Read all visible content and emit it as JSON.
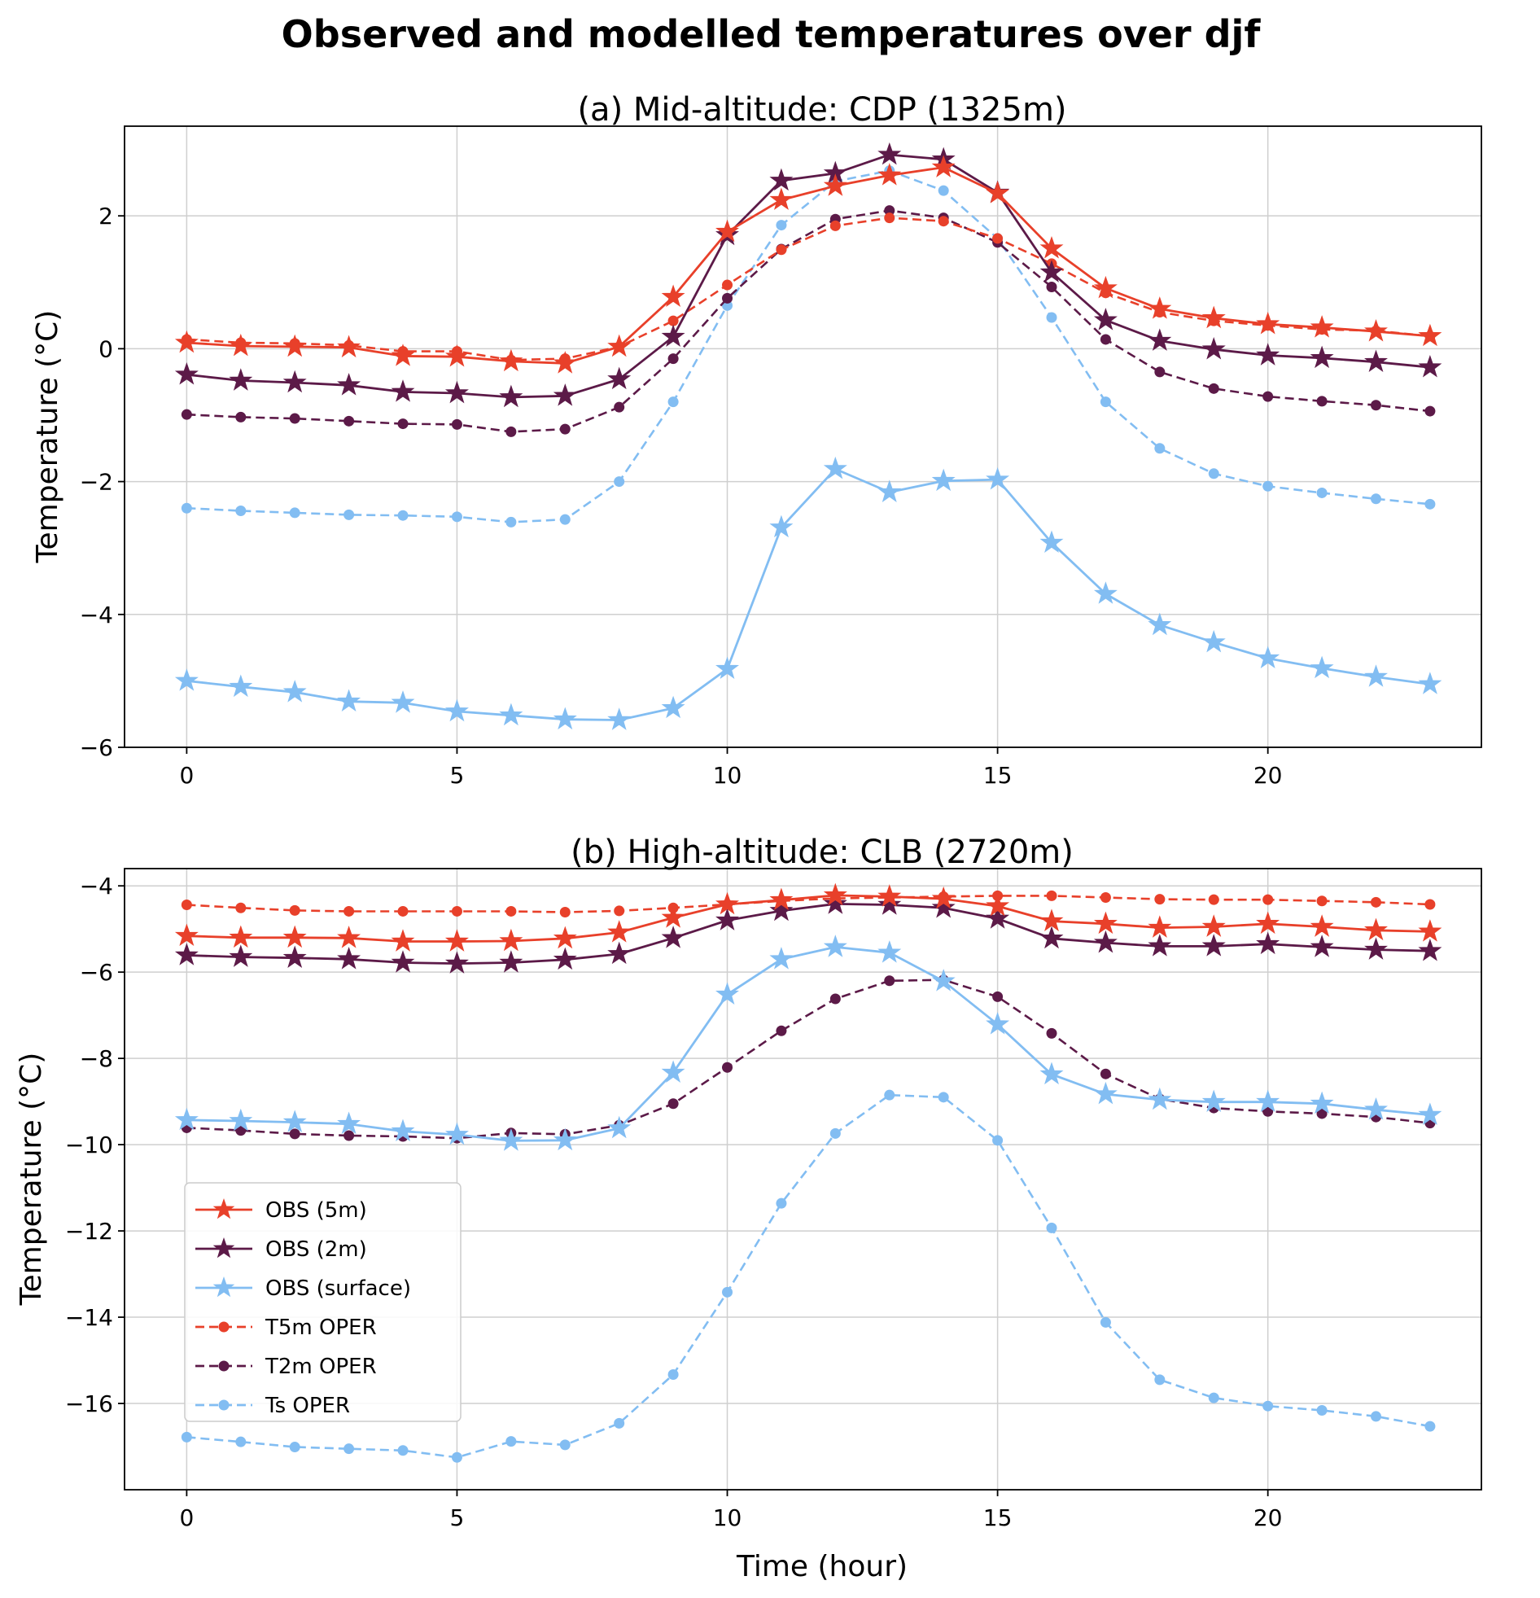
{
  "figure": {
    "title": "Observed and modelled temperatures over djf",
    "xlabel": "Time (hour)"
  },
  "colors": {
    "obs5m": "#e8402a",
    "obs2m": "#5c1a48",
    "obssurf": "#82bdf2",
    "t5m": "#e8402a",
    "t2m": "#5c1a48",
    "ts": "#82bdf2"
  },
  "legend": {
    "placement": "lower-left of panel (b)",
    "entries": [
      {
        "label": "OBS (5m)",
        "series": "obs5m",
        "style": "solid",
        "marker": "star"
      },
      {
        "label": "OBS (2m)",
        "series": "obs2m",
        "style": "solid",
        "marker": "star"
      },
      {
        "label": "OBS (surface)",
        "series": "obssurf",
        "style": "solid",
        "marker": "star"
      },
      {
        "label": "T5m OPER",
        "series": "t5m",
        "style": "dashed",
        "marker": "circle"
      },
      {
        "label": "T2m OPER",
        "series": "t2m",
        "style": "dashed",
        "marker": "circle"
      },
      {
        "label": "Ts OPER",
        "series": "ts",
        "style": "dashed",
        "marker": "circle"
      }
    ]
  },
  "chart_data": [
    {
      "type": "line",
      "title": "(a) Mid-altitude: CDP (1325m)",
      "xlabel": "",
      "ylabel": "Temperature (°C)",
      "xlim": [
        -1.15,
        23.95
      ],
      "ylim": [
        -6.0,
        3.35
      ],
      "xticks": [
        0,
        5,
        10,
        15,
        20
      ],
      "yticks": [
        -6,
        -4,
        -2,
        0,
        2
      ],
      "grid": true,
      "x": [
        0,
        1,
        2,
        3,
        4,
        5,
        6,
        7,
        8,
        9,
        10,
        11,
        12,
        13,
        14,
        15,
        16,
        17,
        18,
        19,
        20,
        21,
        22,
        23
      ],
      "series": [
        {
          "key": "ts",
          "name": "Ts OPER",
          "style": "dashed",
          "marker": "circle",
          "values": [
            -2.4,
            -2.44,
            -2.47,
            -2.5,
            -2.51,
            -2.53,
            -2.61,
            -2.57,
            -2.0,
            -0.8,
            0.65,
            1.86,
            2.52,
            2.68,
            2.38,
            1.66,
            0.47,
            -0.8,
            -1.5,
            -1.88,
            -2.07,
            -2.17,
            -2.26,
            -2.34
          ]
        },
        {
          "key": "t2m",
          "name": "T2m OPER",
          "style": "dashed",
          "marker": "circle",
          "values": [
            -0.99,
            -1.03,
            -1.05,
            -1.09,
            -1.13,
            -1.14,
            -1.25,
            -1.21,
            -0.88,
            -0.15,
            0.76,
            1.5,
            1.95,
            2.08,
            1.97,
            1.6,
            0.93,
            0.14,
            -0.35,
            -0.6,
            -0.72,
            -0.79,
            -0.85,
            -0.94
          ]
        },
        {
          "key": "t5m",
          "name": "T5m OPER",
          "style": "dashed",
          "marker": "circle",
          "values": [
            0.14,
            0.09,
            0.08,
            0.05,
            -0.04,
            -0.04,
            -0.17,
            -0.15,
            0.03,
            0.42,
            0.96,
            1.49,
            1.85,
            1.97,
            1.92,
            1.66,
            1.28,
            0.84,
            0.55,
            0.42,
            0.35,
            0.29,
            0.27,
            0.19
          ]
        },
        {
          "key": "obssurf",
          "name": "OBS (surface)",
          "style": "solid",
          "marker": "star",
          "values": [
            -5.0,
            -5.09,
            -5.17,
            -5.31,
            -5.33,
            -5.46,
            -5.52,
            -5.58,
            -5.59,
            -5.41,
            -4.82,
            -2.69,
            -1.81,
            -2.16,
            -1.99,
            -1.97,
            -2.92,
            -3.69,
            -4.16,
            -4.42,
            -4.66,
            -4.81,
            -4.94,
            -5.05
          ]
        },
        {
          "key": "obs2m",
          "name": "OBS (2m)",
          "style": "solid",
          "marker": "star",
          "values": [
            -0.39,
            -0.48,
            -0.51,
            -0.55,
            -0.65,
            -0.67,
            -0.73,
            -0.71,
            -0.46,
            0.18,
            1.71,
            2.53,
            2.64,
            2.92,
            2.85,
            2.35,
            1.15,
            0.43,
            0.12,
            -0.01,
            -0.1,
            -0.14,
            -0.2,
            -0.28
          ]
        },
        {
          "key": "obs5m",
          "name": "OBS (5m)",
          "style": "solid",
          "marker": "star",
          "values": [
            0.09,
            0.04,
            0.03,
            0.02,
            -0.11,
            -0.12,
            -0.19,
            -0.22,
            0.03,
            0.78,
            1.76,
            2.24,
            2.45,
            2.61,
            2.73,
            2.34,
            1.51,
            0.91,
            0.6,
            0.46,
            0.37,
            0.32,
            0.26,
            0.19
          ]
        }
      ]
    },
    {
      "type": "line",
      "title": "(b) High-altitude: CLB (2720m)",
      "xlabel": "Time (hour)",
      "ylabel": "Temperature (°C)",
      "xlim": [
        -1.15,
        23.95
      ],
      "ylim": [
        -18.0,
        -3.6
      ],
      "xticks": [
        0,
        5,
        10,
        15,
        20
      ],
      "yticks": [
        -16,
        -14,
        -12,
        -10,
        -8,
        -6,
        -4
      ],
      "grid": true,
      "x": [
        0,
        1,
        2,
        3,
        4,
        5,
        6,
        7,
        8,
        9,
        10,
        11,
        12,
        13,
        14,
        15,
        16,
        17,
        18,
        19,
        20,
        21,
        22,
        23
      ],
      "series": [
        {
          "key": "ts",
          "name": "Ts OPER",
          "style": "dashed",
          "marker": "circle",
          "values": [
            -16.78,
            -16.89,
            -17.01,
            -17.05,
            -17.09,
            -17.25,
            -16.88,
            -16.96,
            -16.46,
            -15.33,
            -13.42,
            -11.36,
            -9.74,
            -8.85,
            -8.9,
            -9.9,
            -11.93,
            -14.12,
            -15.45,
            -15.87,
            -16.06,
            -16.16,
            -16.3,
            -16.53
          ]
        },
        {
          "key": "t2m",
          "name": "T2m OPER",
          "style": "dashed",
          "marker": "circle",
          "values": [
            -9.61,
            -9.67,
            -9.75,
            -9.79,
            -9.81,
            -9.85,
            -9.73,
            -9.76,
            -9.55,
            -9.05,
            -8.21,
            -7.36,
            -6.62,
            -6.2,
            -6.18,
            -6.57,
            -7.42,
            -8.36,
            -8.94,
            -9.15,
            -9.23,
            -9.28,
            -9.36,
            -9.5
          ]
        },
        {
          "key": "t5m",
          "name": "T5m OPER",
          "style": "dashed",
          "marker": "circle",
          "values": [
            -4.44,
            -4.51,
            -4.57,
            -4.59,
            -4.59,
            -4.59,
            -4.59,
            -4.61,
            -4.58,
            -4.51,
            -4.43,
            -4.35,
            -4.29,
            -4.27,
            -4.25,
            -4.23,
            -4.23,
            -4.27,
            -4.31,
            -4.32,
            -4.32,
            -4.35,
            -4.38,
            -4.43
          ]
        },
        {
          "key": "obssurf",
          "name": "OBS (surface)",
          "style": "solid",
          "marker": "star",
          "values": [
            -9.43,
            -9.45,
            -9.48,
            -9.52,
            -9.69,
            -9.77,
            -9.91,
            -9.9,
            -9.62,
            -8.33,
            -6.52,
            -5.7,
            -5.42,
            -5.55,
            -6.21,
            -7.21,
            -8.37,
            -8.83,
            -8.96,
            -9.01,
            -9.01,
            -9.05,
            -9.19,
            -9.31
          ]
        },
        {
          "key": "obs2m",
          "name": "OBS (2m)",
          "style": "solid",
          "marker": "star",
          "values": [
            -5.61,
            -5.65,
            -5.67,
            -5.7,
            -5.78,
            -5.8,
            -5.78,
            -5.71,
            -5.58,
            -5.21,
            -4.8,
            -4.58,
            -4.42,
            -4.44,
            -4.51,
            -4.76,
            -5.22,
            -5.32,
            -5.4,
            -5.4,
            -5.35,
            -5.42,
            -5.48,
            -5.51
          ]
        },
        {
          "key": "obs5m",
          "name": "OBS (5m)",
          "style": "solid",
          "marker": "star",
          "values": [
            -5.16,
            -5.2,
            -5.2,
            -5.21,
            -5.29,
            -5.29,
            -5.28,
            -5.22,
            -5.08,
            -4.74,
            -4.43,
            -4.33,
            -4.22,
            -4.25,
            -4.3,
            -4.47,
            -4.82,
            -4.88,
            -4.97,
            -4.95,
            -4.88,
            -4.95,
            -5.03,
            -5.06
          ]
        }
      ]
    }
  ]
}
